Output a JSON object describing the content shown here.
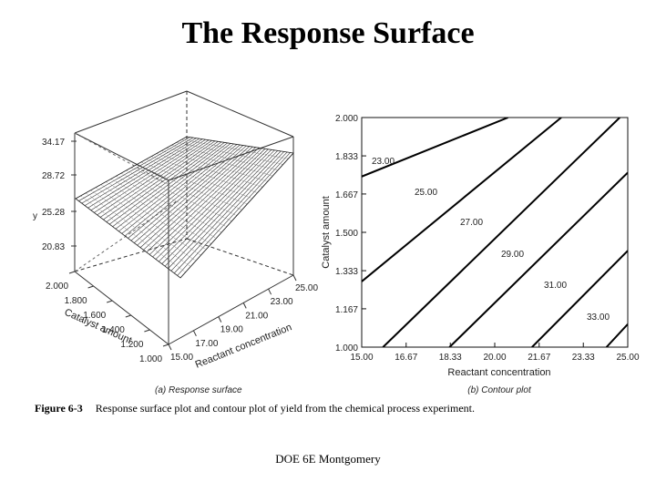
{
  "slide": {
    "title": "The Response Surface",
    "footer": "DOE 6E Montgomery"
  },
  "figure": {
    "number": "Figure 6-3",
    "caption": "Response surface plot and contour plot of yield from the chemical process experiment."
  },
  "chart_data": [
    {
      "type": "surface",
      "panel_label": "(a) Response surface",
      "xlabel": "Reactant concentration",
      "ylabel": "Catalyst amount",
      "zlabel": "y",
      "x_ticks": [
        "15.00",
        "17.00",
        "19.00",
        "21.00",
        "23.00",
        "25.00"
      ],
      "y_ticks": [
        "1.000",
        "1.200",
        "1.400",
        "1.600",
        "1.800",
        "2.000"
      ],
      "z_ticks": [
        "20.83",
        "25.28",
        "28.72",
        "34.17"
      ]
    },
    {
      "type": "contour",
      "panel_label": "(b) Contour plot",
      "xlabel": "Reactant concentration",
      "ylabel": "Catalyst amount",
      "x_ticks": [
        "15.00",
        "16.67",
        "18.33",
        "20.00",
        "21.67",
        "23.33",
        "25.00"
      ],
      "y_ticks": [
        "1.000",
        "1.167",
        "1.333",
        "1.500",
        "1.667",
        "1.833",
        "2.000"
      ],
      "xlim": [
        15,
        25
      ],
      "ylim": [
        1,
        2
      ],
      "contours": [
        {
          "label": "23.00",
          "line": [
            [
              15.0,
              1.743
            ],
            [
              20.5,
              2.0
            ]
          ]
        },
        {
          "label": "25.00",
          "line": [
            [
              15.0,
              1.286
            ],
            [
              22.5,
              2.0
            ]
          ]
        },
        {
          "label": "27.00",
          "line": [
            [
              15.8,
              1.0
            ],
            [
              24.7,
              2.0
            ]
          ]
        },
        {
          "label": "29.00",
          "line": [
            [
              18.3,
              1.0
            ],
            [
              25.0,
              1.76
            ]
          ]
        },
        {
          "label": "31.00",
          "line": [
            [
              21.4,
              1.0
            ],
            [
              25.0,
              1.42
            ]
          ]
        },
        {
          "label": "33.00",
          "line": [
            [
              24.2,
              1.0
            ],
            [
              25.0,
              1.1
            ]
          ]
        }
      ]
    }
  ]
}
